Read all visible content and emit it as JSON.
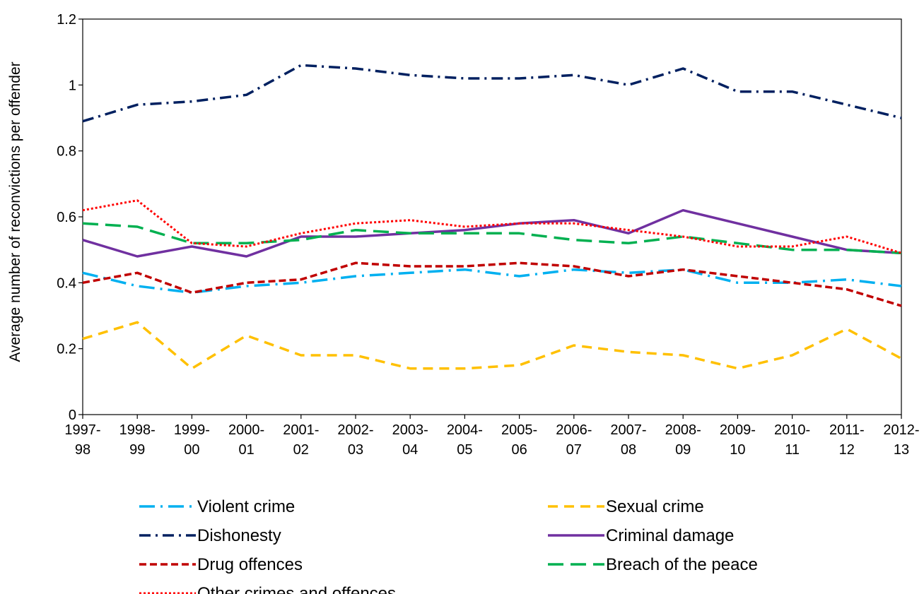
{
  "chart_data": {
    "type": "line",
    "title": "",
    "xlabel": "",
    "ylabel": "Average number of reconvictions per offender",
    "ylim": [
      0,
      1.2
    ],
    "yticks": [
      "0",
      "0.2",
      "0.4",
      "0.6",
      "0.8",
      "1",
      "1.2"
    ],
    "grid": false,
    "legend_position": "bottom",
    "categories": [
      [
        "1997-",
        "98"
      ],
      [
        "1998-",
        "99"
      ],
      [
        "1999-",
        "00"
      ],
      [
        "2000-",
        "01"
      ],
      [
        "2001-",
        "02"
      ],
      [
        "2002-",
        "03"
      ],
      [
        "2003-",
        "04"
      ],
      [
        "2004-",
        "05"
      ],
      [
        "2005-",
        "06"
      ],
      [
        "2006-",
        "07"
      ],
      [
        "2007-",
        "08"
      ],
      [
        "2008-",
        "09"
      ],
      [
        "2009-",
        "10"
      ],
      [
        "2010-",
        "11"
      ],
      [
        "2011-",
        "12"
      ],
      [
        "2012-",
        "13"
      ]
    ],
    "series": [
      {
        "name": "Violent crime",
        "color": "#00b0f0",
        "dash": "long-dash-dot",
        "values": [
          0.43,
          0.39,
          0.37,
          0.39,
          0.4,
          0.42,
          0.43,
          0.44,
          0.42,
          0.44,
          0.43,
          0.44,
          0.4,
          0.4,
          0.41,
          0.39
        ]
      },
      {
        "name": "Sexual crime",
        "color": "#ffc000",
        "dash": "dash",
        "values": [
          0.23,
          0.28,
          0.14,
          0.24,
          0.18,
          0.18,
          0.14,
          0.14,
          0.15,
          0.21,
          0.19,
          0.18,
          0.14,
          0.18,
          0.26,
          0.17
        ]
      },
      {
        "name": "Dishonesty",
        "color": "#002060",
        "dash": "dash-dot",
        "values": [
          0.89,
          0.94,
          0.95,
          0.97,
          1.06,
          1.05,
          1.03,
          1.02,
          1.02,
          1.03,
          1.0,
          1.05,
          0.98,
          0.98,
          0.94,
          0.9
        ]
      },
      {
        "name": "Criminal damage",
        "color": "#7030a0",
        "dash": "solid",
        "values": [
          0.53,
          0.48,
          0.51,
          0.48,
          0.54,
          0.54,
          0.55,
          0.56,
          0.58,
          0.59,
          0.55,
          0.62,
          0.58,
          0.54,
          0.5,
          0.49
        ]
      },
      {
        "name": "Drug offences",
        "color": "#c00000",
        "dash": "short-dash",
        "values": [
          0.4,
          0.43,
          0.37,
          0.4,
          0.41,
          0.46,
          0.45,
          0.45,
          0.46,
          0.45,
          0.42,
          0.44,
          0.42,
          0.4,
          0.38,
          0.33
        ]
      },
      {
        "name": "Breach of the peace",
        "color": "#00b050",
        "dash": "long-dash",
        "values": [
          0.58,
          0.57,
          0.52,
          0.52,
          0.53,
          0.56,
          0.55,
          0.55,
          0.55,
          0.53,
          0.52,
          0.54,
          0.52,
          0.5,
          0.5,
          0.49
        ]
      },
      {
        "name": "Other crimes and offences",
        "color": "#ff0000",
        "dash": "dot",
        "values": [
          0.62,
          0.65,
          0.52,
          0.51,
          0.55,
          0.58,
          0.59,
          0.57,
          0.58,
          0.58,
          0.56,
          0.54,
          0.51,
          0.51,
          0.54,
          0.49
        ]
      }
    ]
  }
}
